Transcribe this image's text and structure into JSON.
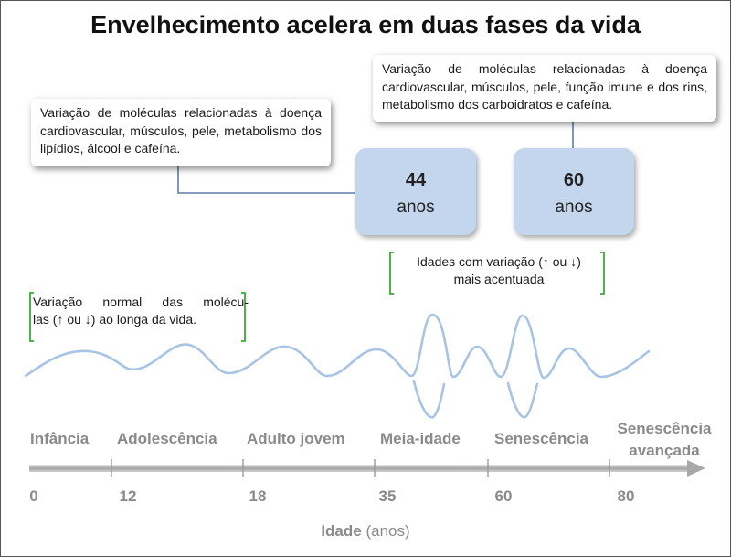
{
  "title": "Envelhecimento acelera em duas fases da vida",
  "callouts": {
    "left": "Variação de moléculas relacionadas à doença cardiovascular, músculos, pele, metabolismo dos lipídios, álcool e cafeína.",
    "right": "Variação de moléculas relacionadas à doença cardiovascular, músculos, pele, função imune e dos rins, metabolismo dos carboidratos e cafeína."
  },
  "peak_ages": [
    {
      "value": "44",
      "unit": "anos"
    },
    {
      "value": "60",
      "unit": "anos"
    }
  ],
  "notes": {
    "normal_line1": "Variação normal das molécu-",
    "normal_line2": "las (↑ ou ↓) ao longa da vida.",
    "accent_line1": "Idades com variação (↑ ou ↓)",
    "accent_line2": "mais acentuada"
  },
  "life_phases": [
    {
      "label": "Infância"
    },
    {
      "label": "Adolescência"
    },
    {
      "label": "Adulto jovem"
    },
    {
      "label": "Meia-idade"
    },
    {
      "label": "Senescência"
    },
    {
      "label_line1": "Senescência",
      "label_line2": "avançada"
    }
  ],
  "axis": {
    "ticks": [
      "0",
      "12",
      "18",
      "35",
      "60",
      "80"
    ],
    "title_bold": "Idade",
    "title_rest": " (anos)"
  },
  "colors": {
    "wave": "#a8c4e4",
    "age_box": "#c4d6ee",
    "bracket": "#3aaa35",
    "connector": "#5b7fa6",
    "axis_arrow": "#9a9a9a",
    "muted_text": "#8a8a8a"
  }
}
